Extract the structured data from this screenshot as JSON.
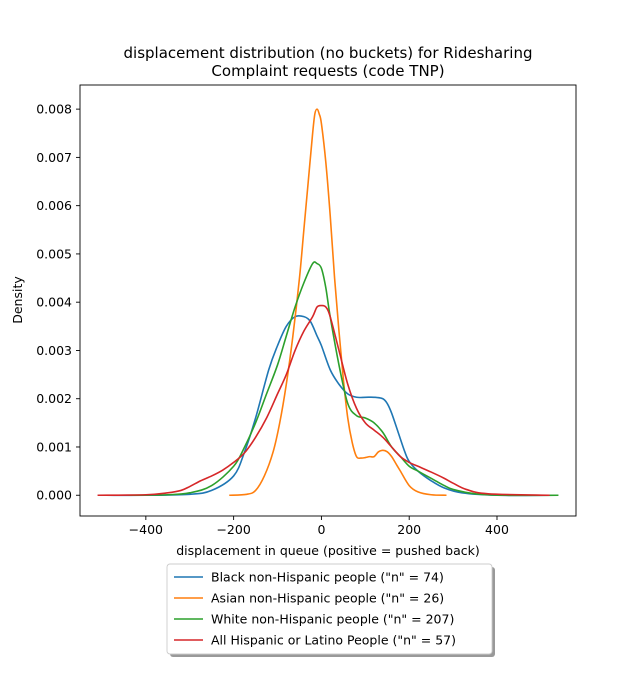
{
  "chart_data": {
    "type": "line",
    "title": "displacement distribution (no buckets)  for Ridesharing\nComplaint requests (code TNP)",
    "xlabel": "displacement in queue (positive = pushed back)",
    "ylabel": "Density",
    "xlim": [
      -550,
      580
    ],
    "ylim": [
      -0.00043,
      0.0085
    ],
    "xticks": [
      -400,
      -200,
      0,
      200,
      400
    ],
    "xtick_labels": [
      "−400",
      "−200",
      "0",
      "200",
      "400"
    ],
    "yticks": [
      0.0,
      0.001,
      0.002,
      0.003,
      0.004,
      0.005,
      0.006,
      0.007,
      0.008
    ],
    "ytick_labels": [
      "0.000",
      "0.001",
      "0.002",
      "0.003",
      "0.004",
      "0.005",
      "0.006",
      "0.007",
      "0.008"
    ],
    "grid": false,
    "legend_position": "below",
    "series": [
      {
        "name": "Black non-Hispanic people (\"n\" = 74)",
        "color": "#1f77b4",
        "x": [
          -490,
          -400,
          -300,
          -250,
          -200,
          -175,
          -150,
          -120,
          -100,
          -80,
          -60,
          -40,
          -25,
          -10,
          0,
          20,
          40,
          60,
          80,
          100,
          120,
          140,
          150,
          160,
          175,
          190,
          200,
          220,
          250,
          280,
          320,
          400,
          520
        ],
        "y": [
          0.0,
          0.0,
          2e-05,
          0.0001,
          0.0004,
          0.0009,
          0.0016,
          0.0026,
          0.0031,
          0.0035,
          0.0037,
          0.0037,
          0.0036,
          0.0033,
          0.0031,
          0.0026,
          0.0023,
          0.0021,
          0.00203,
          0.00203,
          0.00203,
          0.002,
          0.0019,
          0.0017,
          0.0013,
          0.0009,
          0.0007,
          0.0005,
          0.0003,
          0.00015,
          5e-05,
          0.0,
          0.0
        ]
      },
      {
        "name": "Asian non-Hispanic people (\"n\" = 26)",
        "color": "#ff7f0e",
        "x": [
          -210,
          -170,
          -150,
          -130,
          -110,
          -95,
          -80,
          -65,
          -50,
          -40,
          -30,
          -20,
          -15,
          -10,
          -5,
          0,
          10,
          20,
          30,
          40,
          50,
          60,
          70,
          80,
          90,
          100,
          110,
          120,
          130,
          140,
          150,
          160,
          170,
          180,
          200,
          220,
          250,
          285
        ],
        "y": [
          0.0,
          2e-05,
          0.0001,
          0.0004,
          0.0009,
          0.0015,
          0.0023,
          0.0033,
          0.0045,
          0.0055,
          0.0065,
          0.0075,
          0.0079,
          0.008,
          0.0079,
          0.0077,
          0.0069,
          0.0058,
          0.0045,
          0.0034,
          0.0024,
          0.0016,
          0.0011,
          0.0008,
          0.00077,
          0.00078,
          0.0008,
          0.0008,
          0.0009,
          0.00093,
          0.0009,
          0.0008,
          0.00065,
          0.0005,
          0.0002,
          7e-05,
          1e-05,
          0.0
        ]
      },
      {
        "name": "White non-Hispanic people (\"n\" = 207)",
        "color": "#2ca02c",
        "x": [
          -440,
          -350,
          -300,
          -250,
          -200,
          -175,
          -150,
          -125,
          -100,
          -80,
          -60,
          -40,
          -20,
          -10,
          0,
          10,
          20,
          40,
          60,
          80,
          100,
          120,
          140,
          160,
          180,
          200,
          220,
          240,
          260,
          280,
          300,
          350,
          420,
          540
        ],
        "y": [
          0.0,
          1e-05,
          5e-05,
          0.0002,
          0.0006,
          0.001,
          0.0015,
          0.0021,
          0.0027,
          0.0033,
          0.0039,
          0.0044,
          0.0048,
          0.0048,
          0.0047,
          0.0043,
          0.0037,
          0.0027,
          0.0019,
          0.00165,
          0.0016,
          0.0015,
          0.0013,
          0.001,
          0.0008,
          0.0006,
          0.0005,
          0.0004,
          0.0003,
          0.0002,
          0.00012,
          3e-05,
          0.0,
          0.0
        ]
      },
      {
        "name": "All Hispanic or Latino People (\"n\" = 57)",
        "color": "#d62728",
        "x": [
          -510,
          -400,
          -350,
          -320,
          -300,
          -275,
          -250,
          -225,
          -200,
          -175,
          -150,
          -125,
          -100,
          -80,
          -60,
          -40,
          -20,
          -10,
          0,
          10,
          20,
          40,
          60,
          80,
          100,
          120,
          140,
          160,
          180,
          200,
          220,
          250,
          280,
          300,
          330,
          380,
          520
        ],
        "y": [
          0.0,
          1e-05,
          5e-05,
          0.0001,
          0.00018,
          0.0003,
          0.0004,
          0.00052,
          0.00068,
          0.00088,
          0.0012,
          0.0016,
          0.0021,
          0.0025,
          0.003,
          0.0034,
          0.0037,
          0.0039,
          0.00393,
          0.0039,
          0.0037,
          0.003,
          0.0023,
          0.0018,
          0.0015,
          0.00135,
          0.0012,
          0.001,
          0.0008,
          0.00068,
          0.0006,
          0.00048,
          0.00035,
          0.00025,
          0.00012,
          3e-05,
          0.0
        ]
      }
    ]
  }
}
